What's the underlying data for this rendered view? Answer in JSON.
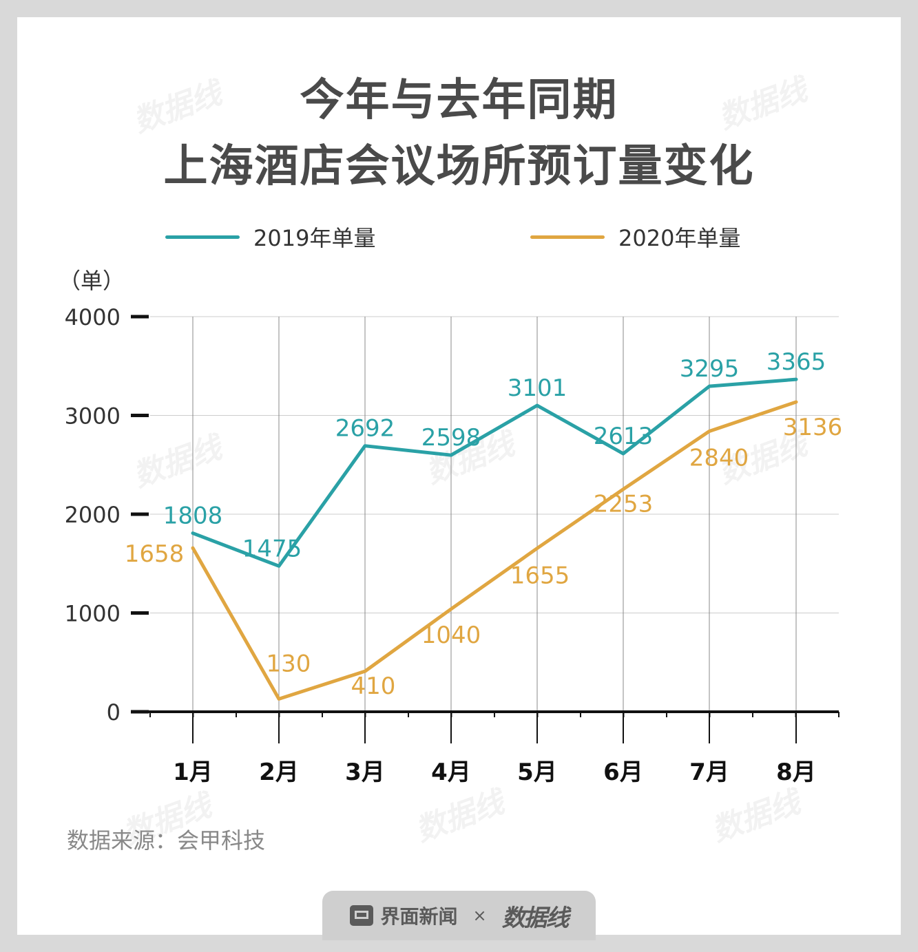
{
  "header": {
    "title_line1": "今年与去年同期",
    "title_line2": "上海酒店会议场所预订量变化"
  },
  "footer": {
    "source": "数据来源：会甲科技",
    "brand": "界面新闻",
    "times": "×",
    "partner": "数据线"
  },
  "colors": {
    "series_2019": "#2aa1a6",
    "series_2020": "#e0a641",
    "title": "#4a4a4a",
    "axis": "#111111",
    "grid": "#cccccc"
  },
  "chart_data": {
    "type": "line",
    "title": "今年与去年同期 上海酒店会议场所预订量变化",
    "unit_label": "（单）",
    "categories": [
      "1月",
      "2月",
      "3月",
      "4月",
      "5月",
      "6月",
      "7月",
      "8月"
    ],
    "series": [
      {
        "name": "2019年单量",
        "values": [
          1808,
          1475,
          2692,
          2598,
          3101,
          2613,
          3295,
          3365
        ]
      },
      {
        "name": "2020年单量",
        "values": [
          1658,
          130,
          410,
          1040,
          1655,
          2253,
          2840,
          3136
        ]
      }
    ],
    "y_ticks": [
      "0",
      "1000",
      "2000",
      "3000",
      "4000"
    ],
    "ylim": [
      0,
      4000
    ],
    "grid": true,
    "legend": "top"
  }
}
